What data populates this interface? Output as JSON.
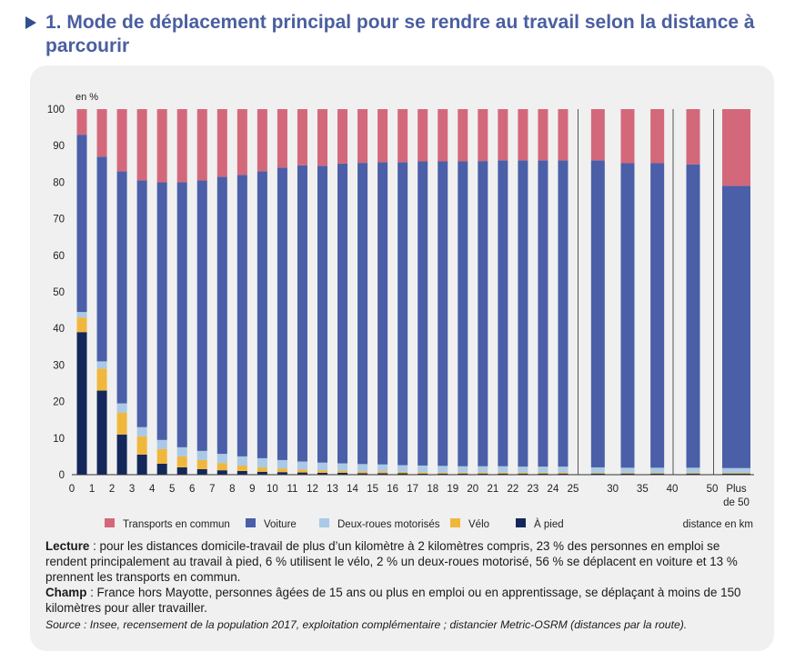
{
  "title": "1. Mode de déplacement principal pour se rendre au travail selon la distance à parcourir",
  "notes": {
    "lecture_label": "Lecture",
    "lecture_text": " : pour les distances domicile-travail de plus d’un kilomètre à 2 kilomètres compris, 23 % des personnes en emploi se rendent principalement au travail à pied, 6 % utilisent le vélo, 2 % un deux-roues motorisé, 56 % se déplacent en voiture et 13 % prennent les transports en commun.",
    "champ_label": "Champ",
    "champ_text": " : France hors Mayotte, personnes âgées de 15 ans ou plus en emploi ou en apprentissage, se déplaçant à moins de 150 kilomètres pour aller travailler.",
    "source": "Source : Insee, recensement de la population 2017, exploitation complémentaire ; distancier Metric-OSRM (distances par la route)."
  },
  "chart_data": {
    "type": "bar",
    "stacked": true,
    "ylabel": "en %",
    "xlabel": "distance en km",
    "ylim": [
      0,
      100
    ],
    "yticks": [
      0,
      10,
      20,
      30,
      40,
      50,
      60,
      70,
      80,
      90,
      100
    ],
    "groups": [
      {
        "tick_labels": [
          "0",
          "1",
          "2",
          "3",
          "4",
          "5",
          "6",
          "7",
          "8",
          "9",
          "10",
          "11",
          "12",
          "13",
          "14",
          "15",
          "16",
          "17",
          "18",
          "19",
          "20",
          "21",
          "22",
          "23",
          "24",
          "25"
        ],
        "bars": 25
      },
      {
        "tick_labels": [
          "25",
          "30",
          "35",
          "40"
        ],
        "bars": 3
      },
      {
        "tick_labels": [
          "40",
          "50"
        ],
        "bars": 1
      },
      {
        "tick_labels": [
          "Plus de 50"
        ],
        "bars": 1
      }
    ],
    "colors": {
      "Transports en commun": "#d4687b",
      "Voiture": "#4a5fa8",
      "Deux-roues motorisés": "#a9c9e6",
      "Vélo": "#f0b73d",
      "À pied": "#13275a"
    },
    "series": [
      {
        "name": "À pied",
        "values": [
          39,
          23,
          11,
          5.5,
          3,
          2,
          1.5,
          1.2,
          1,
          0.8,
          0.7,
          0.6,
          0.5,
          0.5,
          0.4,
          0.4,
          0.4,
          0.3,
          0.3,
          0.3,
          0.3,
          0.3,
          0.3,
          0.3,
          0.3,
          0.3,
          0.3,
          0.3,
          0.3,
          0.3
        ]
      },
      {
        "name": "Vélo",
        "values": [
          4,
          6,
          6,
          5,
          4,
          3,
          2.5,
          2,
          1.5,
          1.2,
          1,
          0.8,
          0.7,
          0.6,
          0.5,
          0.5,
          0.4,
          0.4,
          0.3,
          0.3,
          0.3,
          0.3,
          0.3,
          0.3,
          0.3,
          0.2,
          0.2,
          0.2,
          0.2,
          0.2
        ]
      },
      {
        "name": "Deux-roues motorisés",
        "values": [
          1.5,
          2,
          2.5,
          2.5,
          2.5,
          2.5,
          2.5,
          2.5,
          2.5,
          2.5,
          2.3,
          2.2,
          2.1,
          2,
          2,
          1.9,
          1.8,
          1.8,
          1.8,
          1.7,
          1.7,
          1.7,
          1.6,
          1.6,
          1.6,
          1.5,
          1.4,
          1.4,
          1.4,
          1.3
        ]
      },
      {
        "name": "Voiture",
        "values": [
          48.5,
          56,
          63.5,
          67.5,
          70.5,
          72.5,
          74,
          75.8,
          77,
          78.5,
          80,
          81,
          81.2,
          82,
          82.4,
          82.7,
          82.9,
          83.2,
          83.3,
          83.4,
          83.5,
          83.7,
          83.8,
          83.8,
          83.8,
          84,
          83.3,
          83.3,
          83,
          77.2
        ]
      },
      {
        "name": "Transports en commun",
        "values": [
          7,
          13,
          17,
          19.5,
          20,
          20,
          19.5,
          18.5,
          18,
          17,
          16,
          15.4,
          15.5,
          14.9,
          14.7,
          14.5,
          14.5,
          14.3,
          14.3,
          14.3,
          14.2,
          14,
          14,
          14,
          14,
          14,
          14.8,
          14.8,
          15.1,
          21
        ]
      }
    ],
    "legend": [
      "Transports en commun",
      "Voiture",
      "Deux-roues motorisés",
      "Vélo",
      "À pied"
    ],
    "legend_position": "bottom"
  }
}
